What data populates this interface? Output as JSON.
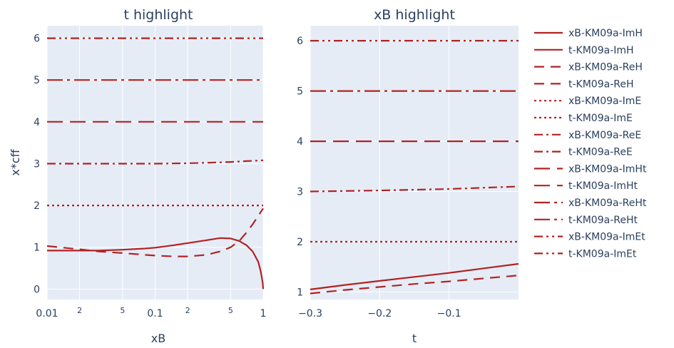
{
  "colors": {
    "line": "#b22222",
    "plot_bg": "#e5ecf6",
    "grid": "#ffffff",
    "text": "#2a3f5f"
  },
  "chart_data": [
    {
      "type": "line",
      "title": "t highlight",
      "xlabel": "xB",
      "ylabel": "x*cff",
      "xscale": "log",
      "xlim": [
        0.01,
        1
      ],
      "ylim": [
        -0.25,
        6.3
      ],
      "x_ticks": [
        {
          "value": 0.01,
          "label": "0.01",
          "major": true
        },
        {
          "value": 0.02,
          "label": "2",
          "major": false
        },
        {
          "value": 0.05,
          "label": "5",
          "major": false
        },
        {
          "value": 0.1,
          "label": "0.1",
          "major": true
        },
        {
          "value": 0.2,
          "label": "2",
          "major": false
        },
        {
          "value": 0.5,
          "label": "5",
          "major": false
        },
        {
          "value": 1,
          "label": "1",
          "major": true
        }
      ],
      "y_ticks": [
        0,
        1,
        2,
        3,
        4,
        5,
        6
      ],
      "series": [
        {
          "name": "xB-KM09a-ImH",
          "dash": "solid",
          "x": [
            0.01,
            0.02,
            0.03,
            0.05,
            0.08,
            0.1,
            0.15,
            0.2,
            0.3,
            0.4,
            0.5,
            0.6,
            0.7,
            0.8,
            0.9,
            0.95,
            0.99,
            1.0
          ],
          "y": [
            0.92,
            0.92,
            0.92,
            0.94,
            0.97,
            0.99,
            1.05,
            1.1,
            1.17,
            1.22,
            1.21,
            1.15,
            1.05,
            0.9,
            0.65,
            0.42,
            0.15,
            0.0
          ]
        },
        {
          "name": "xB-KM09a-ReH",
          "dash": "dash",
          "x": [
            0.01,
            0.02,
            0.03,
            0.05,
            0.08,
            0.1,
            0.15,
            0.2,
            0.3,
            0.4,
            0.5,
            0.6,
            0.7,
            0.8,
            0.9,
            1.0
          ],
          "y": [
            1.03,
            0.95,
            0.9,
            0.86,
            0.82,
            0.8,
            0.78,
            0.78,
            0.82,
            0.9,
            1.0,
            1.15,
            1.35,
            1.55,
            1.75,
            1.93
          ]
        },
        {
          "name": "xB-KM09a-ImE",
          "dash": "dot",
          "x": [
            0.01,
            1.0
          ],
          "y": [
            2.0,
            2.0
          ]
        },
        {
          "name": "xB-KM09a-ReE",
          "dash": "dashdot",
          "x": [
            0.01,
            0.05,
            0.1,
            0.2,
            0.3,
            0.5,
            0.7,
            1.0
          ],
          "y": [
            3.0,
            3.0,
            3.0,
            3.01,
            3.02,
            3.04,
            3.06,
            3.08
          ]
        },
        {
          "name": "xB-KM09a-ImHt",
          "dash": "longdash",
          "x": [
            0.01,
            1.0
          ],
          "y": [
            4.0,
            4.0
          ]
        },
        {
          "name": "xB-KM09a-ReHt",
          "dash": "longdashdot",
          "x": [
            0.01,
            1.0
          ],
          "y": [
            5.0,
            5.0
          ]
        },
        {
          "name": "xB-KM09a-ImEt",
          "dash": "dashdotdot",
          "x": [
            0.01,
            1.0
          ],
          "y": [
            6.0,
            6.0
          ]
        }
      ]
    },
    {
      "type": "line",
      "title": "xB highlight",
      "xlabel": "t",
      "ylabel": "",
      "xscale": "linear",
      "xlim": [
        -0.3,
        0.0
      ],
      "ylim": [
        0.85,
        6.3
      ],
      "x_ticks": [
        {
          "value": -0.3,
          "label": "−0.3",
          "major": true
        },
        {
          "value": -0.2,
          "label": "−0.2",
          "major": true
        },
        {
          "value": -0.1,
          "label": "−0.1",
          "major": true
        }
      ],
      "y_ticks": [
        1,
        2,
        3,
        4,
        5,
        6
      ],
      "series": [
        {
          "name": "t-KM09a-ImH",
          "dash": "solid",
          "x": [
            -0.3,
            -0.25,
            -0.2,
            -0.15,
            -0.1,
            -0.05,
            0.0
          ],
          "y": [
            1.05,
            1.14,
            1.22,
            1.3,
            1.38,
            1.47,
            1.56
          ]
        },
        {
          "name": "t-KM09a-ReH",
          "dash": "dash",
          "x": [
            -0.3,
            -0.25,
            -0.2,
            -0.15,
            -0.1,
            -0.05,
            0.0
          ],
          "y": [
            0.97,
            1.04,
            1.1,
            1.16,
            1.21,
            1.27,
            1.33
          ]
        },
        {
          "name": "t-KM09a-ImE",
          "dash": "dot",
          "x": [
            -0.3,
            0.0
          ],
          "y": [
            2.0,
            2.0
          ]
        },
        {
          "name": "t-KM09a-ReE",
          "dash": "dashdot",
          "x": [
            -0.3,
            -0.2,
            -0.1,
            0.0
          ],
          "y": [
            3.0,
            3.02,
            3.05,
            3.1
          ]
        },
        {
          "name": "t-KM09a-ImHt",
          "dash": "longdash",
          "x": [
            -0.3,
            0.0
          ],
          "y": [
            4.0,
            4.0
          ]
        },
        {
          "name": "t-KM09a-ReHt",
          "dash": "longdashdot",
          "x": [
            -0.3,
            0.0
          ],
          "y": [
            5.0,
            5.0
          ]
        },
        {
          "name": "t-KM09a-ImEt",
          "dash": "dashdotdot",
          "x": [
            -0.3,
            0.0
          ],
          "y": [
            6.0,
            6.0
          ]
        }
      ]
    }
  ],
  "legend": {
    "placement": "right",
    "entries": [
      {
        "label": "xB-KM09a-ImH",
        "dash": "solid"
      },
      {
        "label": "t-KM09a-ImH",
        "dash": "solid"
      },
      {
        "label": "xB-KM09a-ReH",
        "dash": "dash"
      },
      {
        "label": "t-KM09a-ReH",
        "dash": "dash"
      },
      {
        "label": "xB-KM09a-ImE",
        "dash": "dot"
      },
      {
        "label": "t-KM09a-ImE",
        "dash": "dot"
      },
      {
        "label": "xB-KM09a-ReE",
        "dash": "dashdot"
      },
      {
        "label": "t-KM09a-ReE",
        "dash": "dashdot"
      },
      {
        "label": "xB-KM09a-ImHt",
        "dash": "longdash"
      },
      {
        "label": "t-KM09a-ImHt",
        "dash": "longdash"
      },
      {
        "label": "xB-KM09a-ReHt",
        "dash": "longdashdot"
      },
      {
        "label": "t-KM09a-ReHt",
        "dash": "longdashdot"
      },
      {
        "label": "xB-KM09a-ImEt",
        "dash": "dashdotdot"
      },
      {
        "label": "t-KM09a-ImEt",
        "dash": "dashdotdot"
      }
    ]
  }
}
